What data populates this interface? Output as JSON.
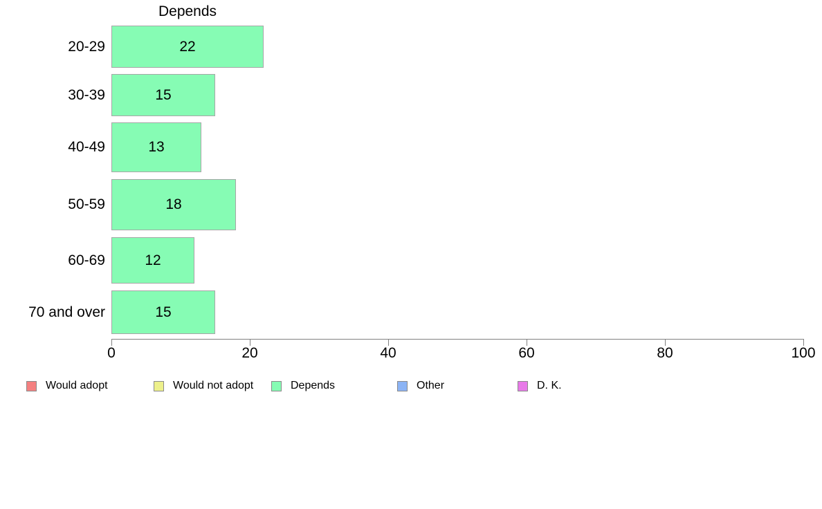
{
  "chart_data": {
    "type": "bar",
    "orientation": "horizontal",
    "title": "Depends",
    "categories": [
      "20-29",
      "30-39",
      "40-49",
      "50-59",
      "60-69",
      "70 and over"
    ],
    "values": [
      22,
      15,
      13,
      18,
      12,
      15
    ],
    "bar_labels": [
      "22",
      "15",
      "13",
      "18",
      "12",
      "15"
    ],
    "xlabel": "",
    "ylabel": "",
    "xlim": [
      0,
      100
    ],
    "x_ticks": [
      0,
      20,
      40,
      60,
      80,
      100
    ],
    "grid": false,
    "colors": {
      "bar_fill": "#86FCB4",
      "bar_border": "#a6a6a6",
      "axis": "#808080",
      "text": "#000000"
    },
    "legend": {
      "position": "bottom",
      "items": [
        {
          "label": "Would adopt",
          "color": "#F48080"
        },
        {
          "label": "Would not adopt",
          "color": "#EDF08B"
        },
        {
          "label": "Depends",
          "color": "#86FCB4"
        },
        {
          "label": "Other",
          "color": "#8CB4F5"
        },
        {
          "label": "D. K.",
          "color": "#E87AE8"
        }
      ]
    }
  }
}
